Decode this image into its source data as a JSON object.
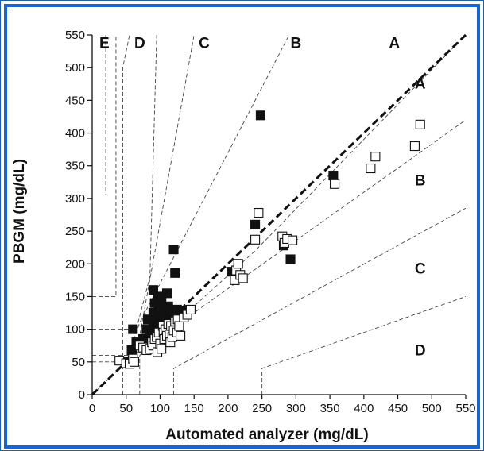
{
  "chart_data": {
    "type": "scatter",
    "title": "",
    "xlabel": "Automated analyzer (mg/dL)",
    "ylabel": "PBGM (mg/dL)",
    "xlim": [
      0,
      550
    ],
    "ylim": [
      0,
      550
    ],
    "x_ticks": [
      0,
      50,
      100,
      150,
      200,
      250,
      300,
      350,
      400,
      450,
      500,
      550
    ],
    "y_ticks": [
      0,
      50,
      100,
      150,
      200,
      250,
      300,
      350,
      400,
      450,
      500,
      550
    ],
    "grid": false,
    "identity_line": [
      [
        0,
        0
      ],
      [
        550,
        550
      ]
    ],
    "zone_boundaries": [
      [
        [
          45,
          0
        ],
        [
          45,
          40
        ],
        [
          45,
          500
        ],
        [
          55,
          550
        ]
      ],
      [
        [
          20,
          550
        ],
        [
          20,
          305
        ]
      ],
      [
        [
          0,
          150
        ],
        [
          35,
          150
        ],
        [
          35,
          550
        ]
      ],
      [
        [
          0,
          100
        ],
        [
          65,
          100
        ],
        [
          85,
          180
        ],
        [
          95,
          550
        ]
      ],
      [
        [
          0,
          60
        ],
        [
          60,
          60
        ],
        [
          70,
          90
        ],
        [
          150,
          550
        ]
      ],
      [
        [
          0,
          50
        ],
        [
          50,
          50
        ],
        [
          70,
          110
        ],
        [
          290,
          550
        ]
      ],
      [
        [
          0,
          0
        ],
        [
          50,
          50
        ],
        [
          170,
          140
        ],
        [
          550,
          420
        ]
      ],
      [
        [
          70,
          0
        ],
        [
          70,
          60
        ],
        [
          240,
          220
        ],
        [
          550,
          550
        ]
      ],
      [
        [
          120,
          0
        ],
        [
          120,
          40
        ],
        [
          550,
          285
        ]
      ],
      [
        [
          250,
          0
        ],
        [
          250,
          40
        ],
        [
          550,
          150
        ]
      ]
    ],
    "zone_labels": [
      {
        "text": "E",
        "x": 18,
        "y": 530
      },
      {
        "text": "D",
        "x": 70,
        "y": 530
      },
      {
        "text": "C",
        "x": 165,
        "y": 530
      },
      {
        "text": "B",
        "x": 300,
        "y": 530
      },
      {
        "text": "A",
        "x": 445,
        "y": 530
      },
      {
        "text": "A",
        "x": 483,
        "y": 468
      },
      {
        "text": "B",
        "x": 483,
        "y": 320
      },
      {
        "text": "C",
        "x": 483,
        "y": 185
      },
      {
        "text": "D",
        "x": 483,
        "y": 60
      }
    ],
    "series": [
      {
        "marker": "filled-square",
        "points": [
          [
            50,
            50
          ],
          [
            60,
            100
          ],
          [
            58,
            68
          ],
          [
            65,
            80
          ],
          [
            75,
            85
          ],
          [
            80,
            100
          ],
          [
            82,
            115
          ],
          [
            85,
            90
          ],
          [
            90,
            108
          ],
          [
            90,
            125
          ],
          [
            92,
            140
          ],
          [
            90,
            160
          ],
          [
            95,
            118
          ],
          [
            97,
            128
          ],
          [
            100,
            132
          ],
          [
            100,
            110
          ],
          [
            102,
            145
          ],
          [
            104,
            100
          ],
          [
            106,
            120
          ],
          [
            108,
            130
          ],
          [
            110,
            155
          ],
          [
            112,
            135
          ],
          [
            115,
            118
          ],
          [
            118,
            125
          ],
          [
            120,
            222
          ],
          [
            122,
            186
          ],
          [
            125,
            130
          ],
          [
            132,
            128
          ],
          [
            140,
            125
          ],
          [
            97,
            150
          ],
          [
            88,
            98
          ],
          [
            93,
            83
          ],
          [
            205,
            188
          ],
          [
            210,
            186
          ],
          [
            240,
            260
          ],
          [
            248,
            427
          ],
          [
            282,
            228
          ],
          [
            292,
            207
          ],
          [
            355,
            335
          ]
        ]
      },
      {
        "marker": "open-square",
        "points": [
          [
            40,
            52
          ],
          [
            50,
            48
          ],
          [
            55,
            47
          ],
          [
            60,
            55
          ],
          [
            62,
            50
          ],
          [
            70,
            75
          ],
          [
            75,
            72
          ],
          [
            80,
            68
          ],
          [
            85,
            70
          ],
          [
            88,
            80
          ],
          [
            90,
            75
          ],
          [
            92,
            85
          ],
          [
            95,
            88
          ],
          [
            96,
            65
          ],
          [
            98,
            95
          ],
          [
            100,
            78
          ],
          [
            102,
            70
          ],
          [
            104,
            105
          ],
          [
            105,
            95
          ],
          [
            106,
            85
          ],
          [
            108,
            100
          ],
          [
            110,
            90
          ],
          [
            112,
            108
          ],
          [
            114,
            92
          ],
          [
            115,
            80
          ],
          [
            116,
            105
          ],
          [
            118,
            88
          ],
          [
            120,
            98
          ],
          [
            122,
            112
          ],
          [
            125,
            95
          ],
          [
            126,
            115
          ],
          [
            128,
            105
          ],
          [
            130,
            90
          ],
          [
            135,
            118
          ],
          [
            140,
            122
          ],
          [
            145,
            130
          ],
          [
            210,
            175
          ],
          [
            212,
            190
          ],
          [
            215,
            200
          ],
          [
            218,
            183
          ],
          [
            222,
            178
          ],
          [
            240,
            237
          ],
          [
            245,
            278
          ],
          [
            280,
            242
          ],
          [
            283,
            232
          ],
          [
            287,
            238
          ],
          [
            295,
            236
          ],
          [
            357,
            322
          ],
          [
            410,
            346
          ],
          [
            417,
            364
          ],
          [
            475,
            380
          ],
          [
            483,
            413
          ]
        ]
      }
    ]
  }
}
